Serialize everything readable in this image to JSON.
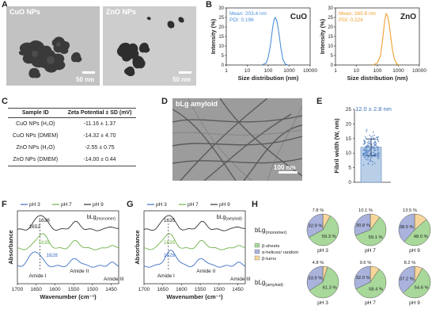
{
  "panels": {
    "A": {
      "label": "A",
      "images": [
        {
          "label": "CuO NPs",
          "scale": "50 nm"
        },
        {
          "label": "ZnO NPs",
          "scale": "50 nm"
        }
      ]
    },
    "B": {
      "label": "B",
      "xlabel": "Size distribution (nm)",
      "ylabel": "Intensity (%)",
      "xticks": [
        "1",
        "10",
        "100",
        "1000",
        "10000"
      ],
      "yticks": [
        "0",
        "5",
        "10",
        "15",
        "20",
        "25",
        "30"
      ]
    },
    "C": {
      "label": "C",
      "headers": [
        "Sample ID",
        "Zeta Potential ± SD (mV)"
      ],
      "rows": [
        {
          "id": "CuO NPs (H₂O)",
          "zeta": "-11.16 ± 1.37"
        },
        {
          "id": "CuO NPs (DMEM)",
          "zeta": "-14.32 ± 4.70"
        },
        {
          "id": "ZnO NPs (H₂O)",
          "zeta": "-2.55 ± 0.75"
        },
        {
          "id": "ZnO NPs (DMEM)",
          "zeta": "-14.00 ± 0.44"
        }
      ]
    },
    "D": {
      "label": "D",
      "image_label": "bLg amyloid",
      "scale": "100 nm"
    },
    "E": {
      "label": "E",
      "annotation": "12.0 ± 2.8 nm",
      "ylabel": "Fibril width (W, nm)",
      "yticks": [
        "0",
        "5",
        "10",
        "15",
        "20",
        "25"
      ]
    },
    "F": {
      "label": "F",
      "legend": [
        "pH 3",
        "pH 7",
        "pH 9"
      ],
      "sample_prefix": "bLg",
      "sample_sub": "(monomer)",
      "peak_labels": [
        "1652",
        "1638",
        "1635",
        "1628"
      ],
      "band_labels": [
        "Amide I",
        "Amide II",
        "Amide III"
      ],
      "xlabel": "Wavenumber (cm⁻¹)",
      "ylabel": "Absorbance",
      "xticks": [
        "1700",
        "1650",
        "1600",
        "1550",
        "1500",
        "1450"
      ]
    },
    "G": {
      "label": "G",
      "legend": [
        "pH 3",
        "pH 7",
        "pH 9"
      ],
      "sample_prefix": "bLg",
      "sample_sub": "(amyloid)",
      "peak_labels": [
        "1635",
        "1635",
        "1628"
      ],
      "band_labels": [
        "Amide I",
        "Amide II",
        "Amide III"
      ],
      "xlabel": "Wavenumber (cm⁻¹)",
      "ylabel": "Absorbance",
      "xticks": [
        "1700",
        "1650",
        "1600",
        "1550",
        "1500",
        "1450"
      ]
    },
    "H": {
      "label": "H",
      "row_labels": [
        {
          "prefix": "bLg",
          "sub": "(monomer)"
        },
        {
          "prefix": "bLg",
          "sub": "(amyloid)"
        }
      ],
      "legend": [
        "β-sheets",
        "α-helices/ random",
        "β-turns"
      ],
      "columns": [
        "pH 3",
        "pH 7",
        "pH 9"
      ]
    }
  },
  "colors": {
    "cuo": "#4a90d9",
    "zno": "#f0a030",
    "ph3": "#3d6fc4",
    "ph7": "#6fb34a",
    "ph9": "#333333",
    "beta_sheet": "#a8d89a",
    "alpha_helix": "#a9b3dc",
    "beta_turn": "#f7d59b",
    "accent_text": "#3b6fb6"
  },
  "chart_data": [
    {
      "type": "line",
      "panel": "B",
      "title": "CuO",
      "annotations": [
        "Mean: 203.4 nm",
        "PDI: 0.196"
      ],
      "x": [
        50,
        80,
        100,
        130,
        160,
        190,
        220,
        260,
        320,
        400,
        500,
        650,
        900
      ],
      "y": [
        0,
        1,
        4,
        11,
        19,
        24,
        25,
        23,
        17,
        9,
        3,
        0.5,
        0
      ],
      "xlabel": "Size distribution (nm)",
      "ylabel": "Intensity (%)",
      "xscale": "log",
      "xlim": [
        1,
        10000
      ],
      "ylim": [
        0,
        30
      ]
    },
    {
      "type": "line",
      "panel": "B",
      "title": "ZnO",
      "annotations": [
        "Mean: 265.8 nm",
        "PDI: 0.224"
      ],
      "x": [
        60,
        100,
        140,
        180,
        220,
        260,
        300,
        360,
        430,
        520,
        650,
        850,
        1100
      ],
      "y": [
        0,
        1,
        5,
        14,
        23,
        27,
        26,
        22,
        15,
        8,
        3,
        0.5,
        0
      ],
      "xlabel": "Size distribution (nm)",
      "ylabel": "Intensity (%)",
      "xscale": "log",
      "xlim": [
        1,
        10000
      ],
      "ylim": [
        0,
        30
      ]
    },
    {
      "type": "bar",
      "panel": "E",
      "categories": [
        ""
      ],
      "values": [
        12.0
      ],
      "error": [
        2.8
      ],
      "ylabel": "Fibril width (W, nm)",
      "ylim": [
        0,
        25
      ]
    },
    {
      "type": "pie",
      "panel": "H",
      "labels": [
        "β-sheets",
        "α-helices/ random",
        "β-turns"
      ],
      "pies": [
        {
          "row": "monomer",
          "column": "pH 3",
          "values": [
            59.3,
            32.9,
            7.8
          ],
          "labels": [
            "59.3 %",
            "32.9 %",
            "7.8 %"
          ]
        },
        {
          "row": "monomer",
          "column": "pH 7",
          "values": [
            59.1,
            30.8,
            10.1
          ],
          "labels": [
            "59.1 %",
            "30.8 %",
            "10.1 %"
          ]
        },
        {
          "row": "monomer",
          "column": "pH 9",
          "values": [
            48.0,
            38.5,
            13.5
          ],
          "labels": [
            "48.0 %",
            "38.5 %",
            "13.5 %"
          ]
        },
        {
          "row": "amyloid",
          "column": "pH 3",
          "values": [
            61.3,
            33.9,
            4.8
          ],
          "labels": [
            "61.3 %",
            "33.9 %",
            "4.8 %"
          ]
        },
        {
          "row": "amyloid",
          "column": "pH 7",
          "values": [
            58.4,
            32.0,
            9.6
          ],
          "labels": [
            "58.4 %",
            "32.0 %",
            "9.6 %"
          ]
        },
        {
          "row": "amyloid",
          "column": "pH 9",
          "values": [
            54.6,
            37.2,
            8.2
          ],
          "labels": [
            "54.6 %",
            "37.2 %",
            "8.2 %"
          ]
        }
      ]
    }
  ]
}
